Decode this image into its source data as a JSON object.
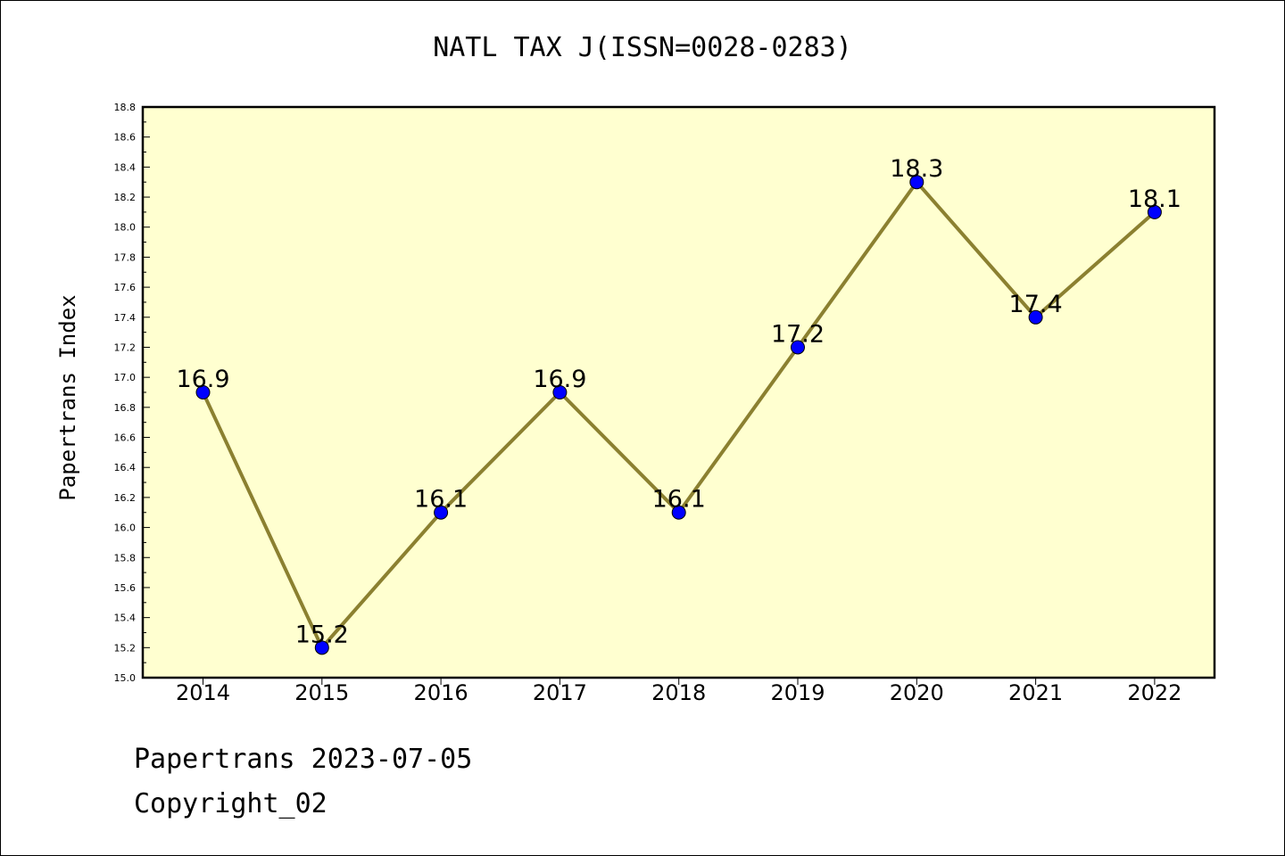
{
  "chart_data": {
    "type": "line",
    "title": "NATL TAX J(ISSN=0028-0283)",
    "xlabel": "",
    "ylabel": "Papertrans Index",
    "categories": [
      "2014",
      "2015",
      "2016",
      "2017",
      "2018",
      "2019",
      "2020",
      "2021",
      "2022"
    ],
    "values": [
      16.9,
      15.2,
      16.1,
      16.9,
      16.1,
      17.2,
      18.3,
      17.4,
      18.1
    ],
    "data_labels": [
      "16.9",
      "15.2",
      "16.1",
      "16.9",
      "16.1",
      "17.2",
      "18.3",
      "17.4",
      "18.1"
    ],
    "ylim": [
      15.0,
      18.8
    ],
    "yticks": [
      "15.0",
      "15.2",
      "15.4",
      "15.6",
      "15.8",
      "16.0",
      "16.2",
      "16.4",
      "16.6",
      "16.8",
      "17.0",
      "17.2",
      "17.4",
      "17.6",
      "17.8",
      "18.0",
      "18.2",
      "18.4",
      "18.6",
      "18.8"
    ],
    "grid": false,
    "colors": {
      "plot_background": "#ffffd0",
      "line": "#8b8030",
      "marker": "#0000ff"
    }
  },
  "footer": {
    "line1": "Papertrans 2023-07-05",
    "line2": "Copyright_02"
  }
}
